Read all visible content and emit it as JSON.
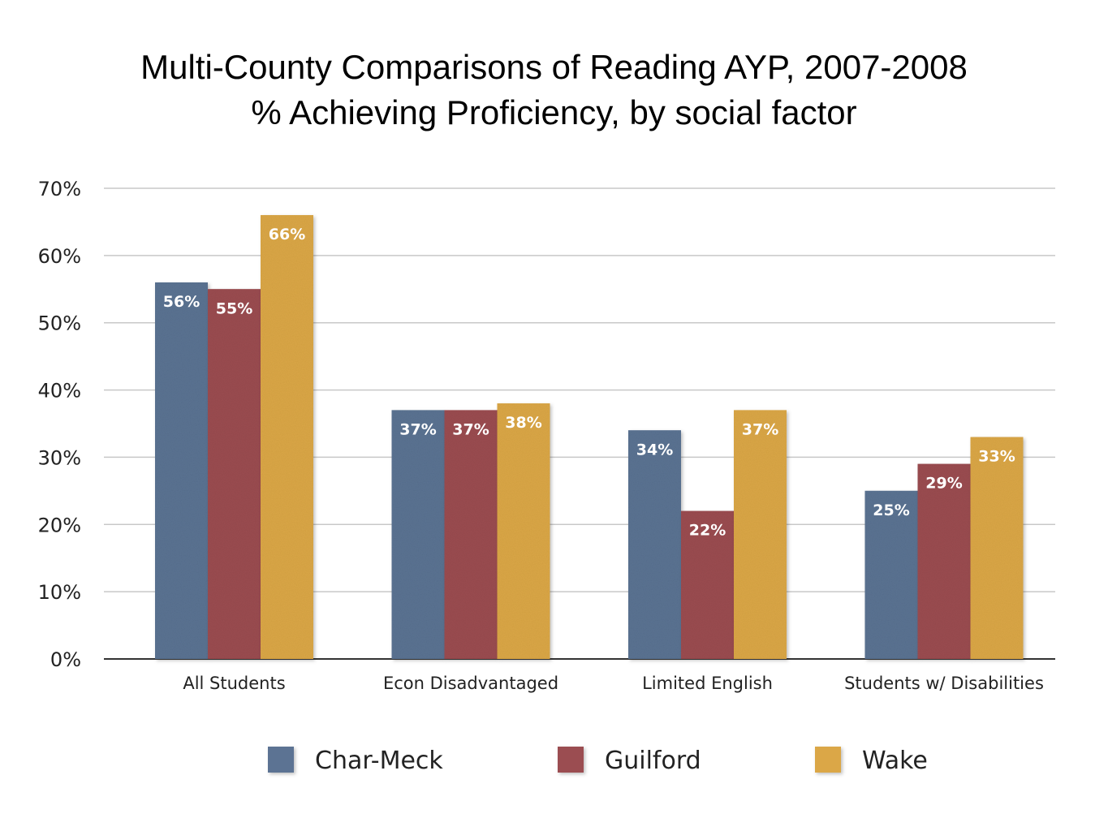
{
  "title": "Multi-County Comparisons of Reading AYP, 2007-2008",
  "subtitle": "% Achieving Proficiency, by social factor",
  "colors": {
    "Char-Meck": "#5b7393",
    "Guilford": "#9b4e51",
    "Wake": "#dba747",
    "grid": "#c8c8c8",
    "axis": "#333333"
  },
  "chart_data": {
    "type": "bar",
    "categories": [
      "All Students",
      "Econ Disadvantaged",
      "Limited English",
      "Students w/ Disabilities"
    ],
    "series": [
      {
        "name": "Char-Meck",
        "values": [
          56,
          37,
          34,
          25
        ],
        "labels": [
          "56%",
          "37%",
          "34%",
          "25%"
        ]
      },
      {
        "name": "Guilford",
        "values": [
          55,
          37,
          22,
          29
        ],
        "labels": [
          "55%",
          "37%",
          "22%",
          "29%"
        ]
      },
      {
        "name": "Wake",
        "values": [
          66,
          38,
          37,
          33
        ],
        "labels": [
          "66%",
          "38%",
          "37%",
          "33%"
        ]
      }
    ],
    "ylim": [
      0,
      70
    ],
    "yticks": [
      0,
      10,
      20,
      30,
      40,
      50,
      60,
      70
    ],
    "ytick_labels": [
      "0%",
      "10%",
      "20%",
      "30%",
      "40%",
      "50%",
      "60%",
      "70%"
    ],
    "grid": true,
    "legend": "bottom"
  }
}
